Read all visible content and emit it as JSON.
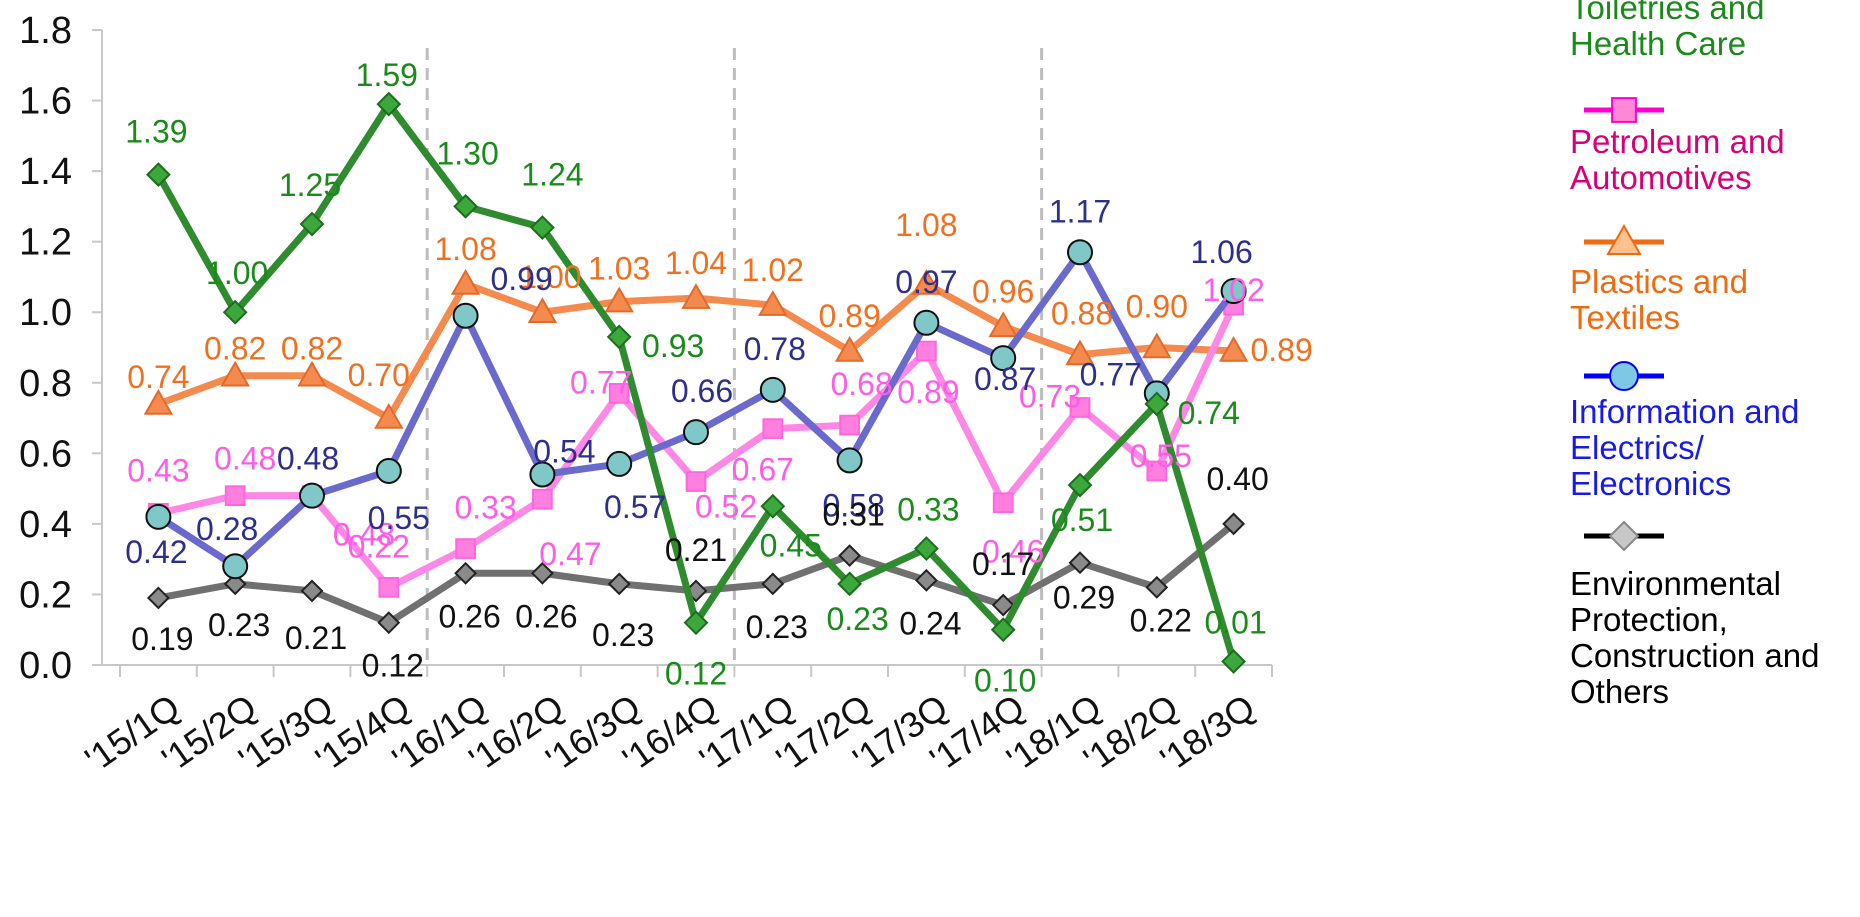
{
  "chart_data": {
    "type": "line",
    "categories": [
      "'15/1Q",
      "'15/2Q",
      "'15/3Q",
      "'15/4Q",
      "'16/1Q",
      "'16/2Q",
      "'16/3Q",
      "'16/4Q",
      "'17/1Q",
      "'17/2Q",
      "'17/3Q",
      "'17/4Q",
      "'18/1Q",
      "'18/2Q",
      "'18/3Q"
    ],
    "ylim": [
      0,
      1.8
    ],
    "yticks": [
      "0.0",
      "0.2",
      "0.4",
      "0.6",
      "0.8",
      "1.0",
      "1.2",
      "1.4",
      "1.6",
      "1.8"
    ],
    "grid": false,
    "year_separators": true,
    "legend_position": "right",
    "series": [
      {
        "name": "Toiletries and\nHealth Care",
        "color": "#2e8b2e",
        "label_color": "#1a8a1a",
        "marker": "diamond",
        "values": [
          1.39,
          1.0,
          1.25,
          1.59,
          1.3,
          1.24,
          0.93,
          0.12,
          0.45,
          0.23,
          0.33,
          0.1,
          0.51,
          0.74,
          0.01
        ],
        "labels": [
          "1.39",
          "1.00",
          "1.25",
          "1.59",
          "1.30",
          "1.24",
          "0.93",
          "0.12",
          "0.45",
          "0.23",
          "0.33",
          "0.10",
          "0.51",
          "0.74",
          "0.01"
        ]
      },
      {
        "name": "Petroleum and\nAutomotives",
        "color": "#ff88e6",
        "label_color": "#ff5ce6",
        "marker": "square",
        "values": [
          0.43,
          0.48,
          0.48,
          0.22,
          0.33,
          0.47,
          0.77,
          0.52,
          0.67,
          0.68,
          0.89,
          0.46,
          0.73,
          0.55,
          1.02
        ],
        "labels": [
          "0.43",
          "0.48",
          "0.48",
          "0.22",
          "0.33",
          "0.47",
          "0.77",
          "0.52",
          "0.67",
          "0.68",
          "0.89",
          "0.46",
          "0.73",
          "0.55",
          "1.02"
        ]
      },
      {
        "name": "Plastics and\nTextiles",
        "color": "#f58a4e",
        "label_color": "#f07020",
        "marker": "triangle",
        "values": [
          0.74,
          0.82,
          0.82,
          0.7,
          1.08,
          1.0,
          1.03,
          1.04,
          1.02,
          0.89,
          1.08,
          0.96,
          0.88,
          0.9,
          0.89
        ],
        "labels": [
          "0.74",
          "0.82",
          "0.82",
          "0.70",
          "1.08",
          "1.00",
          "1.03",
          "1.04",
          "1.02",
          "0.89",
          "1.08",
          "0.96",
          "0.88",
          "0.90",
          "0.89"
        ]
      },
      {
        "name": "Information and\nElectrics/\nElectronics",
        "color": "#6a6acd",
        "label_color": "#2e2e8c",
        "marker": "circle",
        "values": [
          0.42,
          0.28,
          0.48,
          0.55,
          0.99,
          0.54,
          0.57,
          0.66,
          0.78,
          0.58,
          0.97,
          0.87,
          1.17,
          0.77,
          1.06
        ],
        "labels": [
          "0.42",
          "0.28",
          "0.48",
          "0.55",
          "0.99",
          "0.54",
          "0.57",
          "0.66",
          "0.78",
          "0.58",
          "0.97",
          "0.87",
          "1.17",
          "0.77",
          "1.06"
        ]
      },
      {
        "name": "Environmental\nProtection,\nConstruction and\nOthers",
        "color": "#707070",
        "label_color": "#111111",
        "marker": "diamond",
        "values": [
          0.19,
          0.23,
          0.21,
          0.12,
          0.26,
          0.26,
          0.23,
          0.21,
          0.23,
          0.31,
          0.24,
          0.17,
          0.29,
          0.22,
          0.4
        ],
        "labels": [
          "0.19",
          "0.23",
          "0.21",
          "0.12",
          "0.26",
          "0.26",
          "0.23",
          "0.21",
          "0.23",
          "0.31",
          "0.24",
          "0.17",
          "0.29",
          "0.22",
          "0.40"
        ]
      }
    ]
  },
  "legend": {
    "items": [
      {
        "label": "Toiletries and\nHealth Care",
        "color": "#1a8a1a",
        "line": "#2e8b2e",
        "fill": "#3aa83a",
        "marker": "diamond"
      },
      {
        "label": "Petroleum and\nAutomotives",
        "color": "#d6007a",
        "line": "#ff00cc",
        "fill": "#ff88d6",
        "marker": "square"
      },
      {
        "label": "Plastics and\nTextiles",
        "color": "#f06a10",
        "line": "#f06a10",
        "fill": "#ffc090",
        "marker": "triangle"
      },
      {
        "label": "Information and\nElectrics/\n        Electronics",
        "color": "#1a1ae6",
        "line": "#0000ff",
        "fill": "#7ec8e6",
        "marker": "circle"
      },
      {
        "label": "Environmental\nProtection,\nConstruction and\nOthers",
        "color": "#000000",
        "line": "#000000",
        "fill": "#c8c8c8",
        "marker": "diamond"
      }
    ]
  }
}
